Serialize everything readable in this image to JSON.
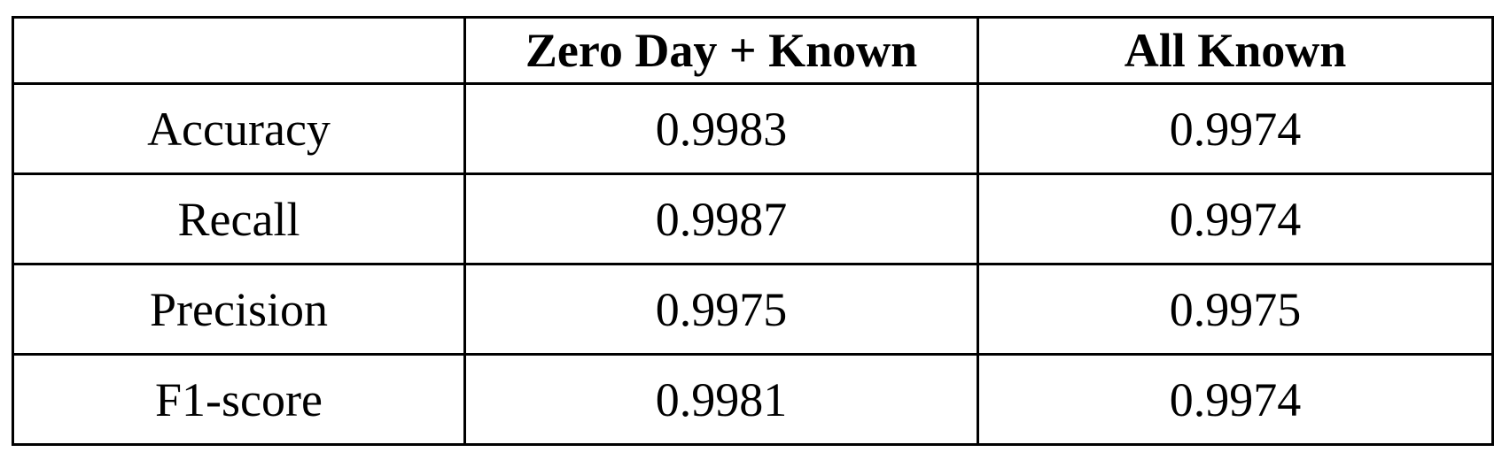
{
  "table": {
    "columns": [
      {
        "label": ""
      },
      {
        "label": "Zero Day + Known"
      },
      {
        "label": "All Known"
      }
    ],
    "rows": [
      {
        "metric": "Accuracy",
        "values": [
          "0.9983",
          "0.9974"
        ]
      },
      {
        "metric": "Recall",
        "values": [
          "0.9987",
          "0.9974"
        ]
      },
      {
        "metric": "Precision",
        "values": [
          "0.9975",
          "0.9975"
        ]
      },
      {
        "metric": "F1-score",
        "values": [
          "0.9981",
          "0.9974"
        ]
      }
    ]
  }
}
